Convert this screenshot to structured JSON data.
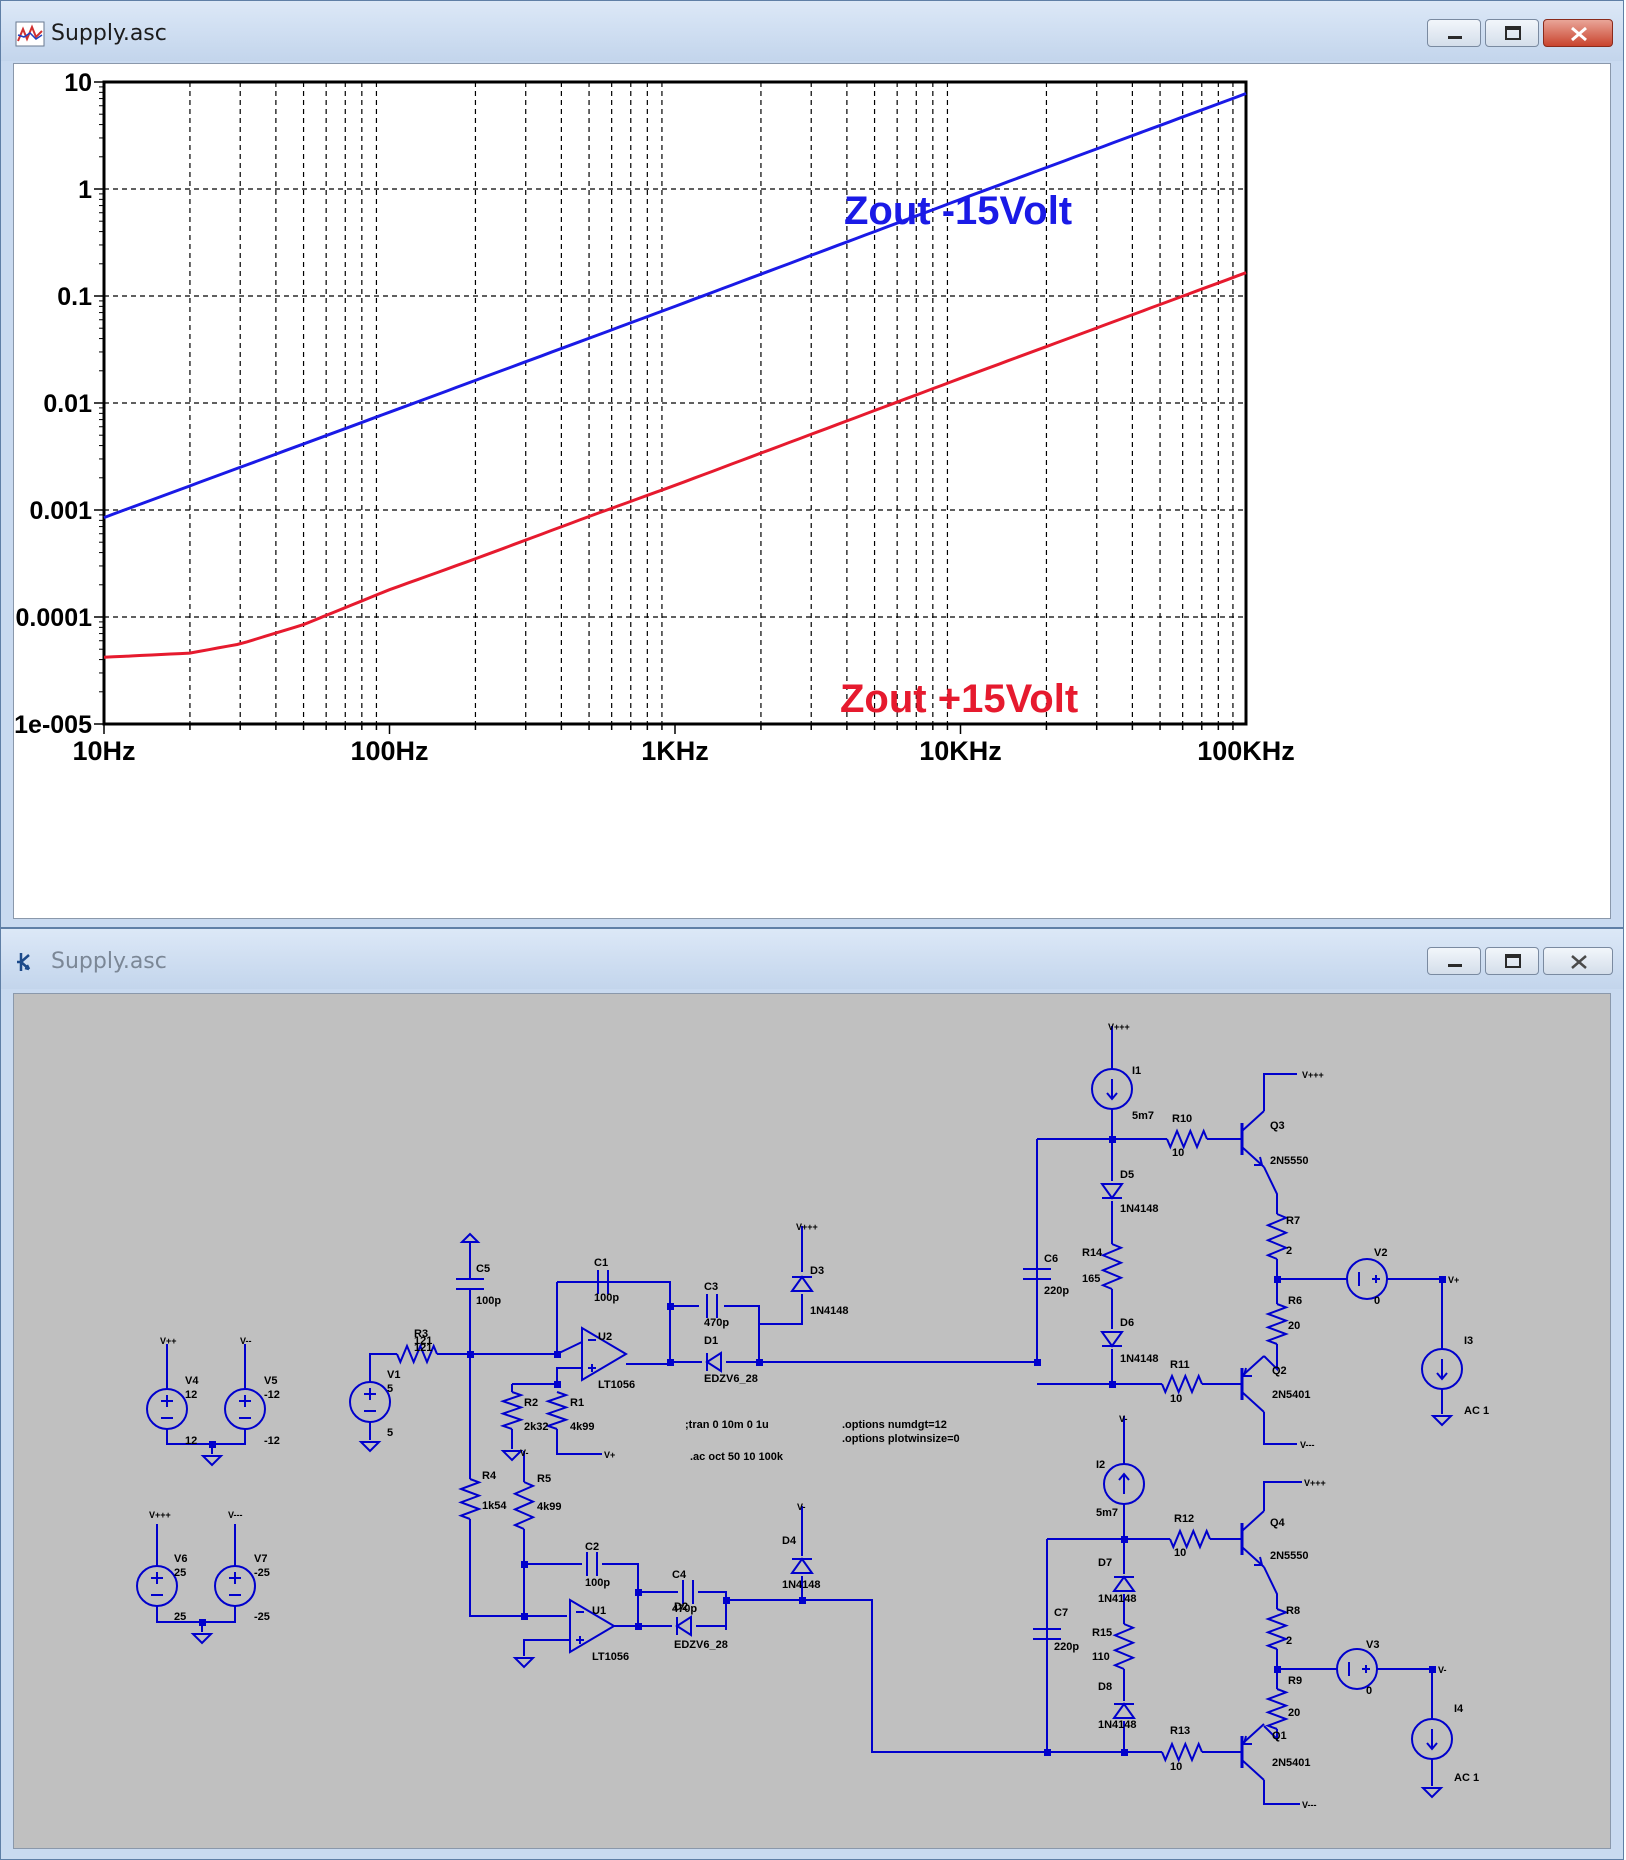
{
  "plot_window": {
    "title": "Supply.asc",
    "icon": "waveform-icon",
    "buttons": [
      "minimize-icon",
      "maximize-icon",
      "close-icon"
    ]
  },
  "schematic_window": {
    "title": "Supply.asc",
    "icon": "schematic-icon",
    "buttons": [
      "minimize-icon",
      "maximize-icon",
      "close-icon"
    ]
  },
  "chart_data": {
    "type": "line",
    "xscale": "log",
    "yscale": "log",
    "xlim": [
      10,
      100000
    ],
    "ylim": [
      1e-05,
      10
    ],
    "grid": true,
    "xticks": [
      "10Hz",
      "100Hz",
      "1KHz",
      "10KHz",
      "100KHz"
    ],
    "yticks": [
      "10",
      "1",
      "0.1",
      "0.01",
      "0.001",
      "0.0001",
      "1e-005"
    ],
    "series": [
      {
        "name": "Zout -15Volt",
        "color": "#1a1ae6",
        "x": [
          10,
          100,
          1000,
          10000,
          100000
        ],
        "y": [
          0.00085,
          0.0082,
          0.08,
          0.8,
          7.8
        ]
      },
      {
        "name": "Zout +15Volt",
        "color": "#e61a2e",
        "x": [
          10,
          20,
          30,
          50,
          100,
          200,
          500,
          1000,
          10000,
          100000
        ],
        "y": [
          4.2e-05,
          4.6e-05,
          5.6e-05,
          8.5e-05,
          0.00018,
          0.00035,
          0.00087,
          0.0017,
          0.017,
          0.165
        ]
      }
    ]
  },
  "schematic": {
    "sources": {
      "V1": {
        "name": "V1",
        "value": "5"
      },
      "V2": {
        "name": "V2",
        "value": "0"
      },
      "V3": {
        "name": "V3",
        "value": "0"
      },
      "V4": {
        "name": "V4",
        "value": "12"
      },
      "V5": {
        "name": "V5",
        "value": "-12"
      },
      "V6": {
        "name": "V6",
        "value": "25"
      },
      "V7": {
        "name": "V7",
        "value": "-25"
      },
      "I1": {
        "name": "I1",
        "value": "5m7"
      },
      "I2": {
        "name": "I2",
        "value": "5m7"
      },
      "I3": {
        "name": "I3",
        "value": "AC 1"
      },
      "I4": {
        "name": "I4",
        "value": "AC 1"
      }
    },
    "resistors": {
      "R1": {
        "name": "R1",
        "value": "4k99"
      },
      "R2": {
        "name": "R2",
        "value": "2k32"
      },
      "R3": {
        "name": "R3",
        "value": "121"
      },
      "R4": {
        "name": "R4",
        "value": "1k54"
      },
      "R5": {
        "name": "R5",
        "value": "4k99"
      },
      "R6": {
        "name": "R6",
        "value": "20"
      },
      "R7": {
        "name": "R7",
        "value": "2"
      },
      "R8": {
        "name": "R8",
        "value": "2"
      },
      "R9": {
        "name": "R9",
        "value": "20"
      },
      "R10": {
        "name": "R10",
        "value": "10"
      },
      "R11": {
        "name": "R11",
        "value": "10"
      },
      "R12": {
        "name": "R12",
        "value": "10"
      },
      "R13": {
        "name": "R13",
        "value": "10"
      },
      "R14": {
        "name": "R14",
        "value": "165"
      },
      "R15": {
        "name": "R15",
        "value": "110"
      }
    },
    "capacitors": {
      "C1": {
        "name": "C1",
        "value": "100p"
      },
      "C2": {
        "name": "C2",
        "value": "100p"
      },
      "C3": {
        "name": "C3",
        "value": "470p"
      },
      "C4": {
        "name": "C4",
        "value": "470p"
      },
      "C5": {
        "name": "C5",
        "value": "100p"
      },
      "C6": {
        "name": "C6",
        "value": "220p"
      },
      "C7": {
        "name": "C7",
        "value": "220p"
      }
    },
    "diodes": {
      "D1": {
        "name": "D1",
        "value": "EDZV6_28"
      },
      "D2": {
        "name": "D2",
        "value": "EDZV6_28"
      },
      "D3": {
        "name": "D3",
        "value": "1N4148"
      },
      "D4": {
        "name": "D4",
        "value": "1N4148"
      },
      "D5": {
        "name": "D5",
        "value": "1N4148"
      },
      "D6": {
        "name": "D6",
        "value": "1N4148"
      },
      "D7": {
        "name": "D7",
        "value": "1N4148"
      },
      "D8": {
        "name": "D8",
        "value": "1N4148"
      }
    },
    "transistors": {
      "Q1": {
        "name": "Q1",
        "value": "2N5401"
      },
      "Q2": {
        "name": "Q2",
        "value": "2N5401"
      },
      "Q3": {
        "name": "Q3",
        "value": "2N5550"
      },
      "Q4": {
        "name": "Q4",
        "value": "2N5550"
      }
    },
    "opamps": {
      "U1": {
        "name": "U1",
        "value": "LT1056"
      },
      "U2": {
        "name": "U2",
        "value": "LT1056"
      }
    },
    "net_labels": {
      "vppp": "V+++",
      "vmmm": "V---",
      "vp": "V+",
      "vm": "V-",
      "vpp": "V++",
      "vmm": "V--"
    },
    "directives": [
      ";tran 0 10m 0 1u",
      ".ac oct 50 10 100k",
      ".options numdgt=12",
      ".options plotwinsize=0"
    ],
    "wire_color": "#0000cc"
  }
}
